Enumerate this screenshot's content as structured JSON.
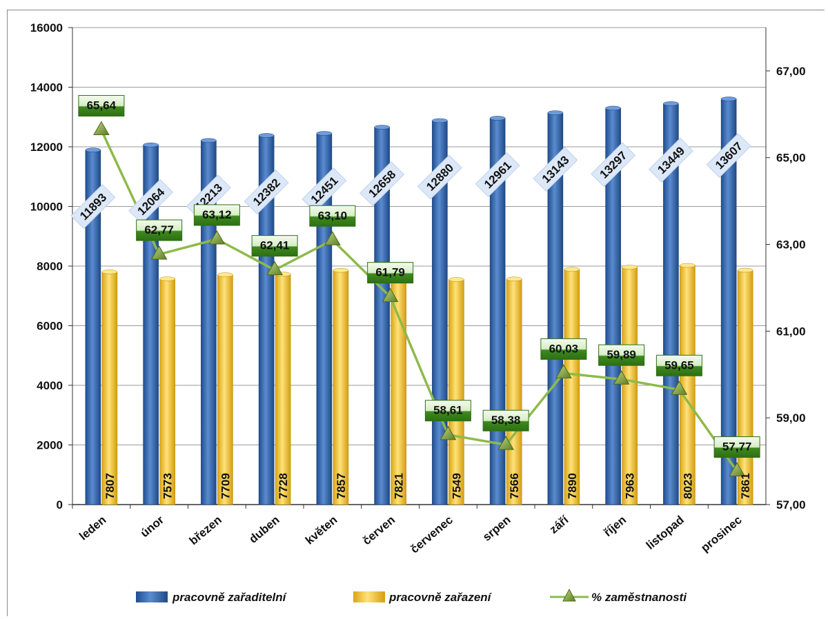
{
  "chart_data": {
    "type": "bar",
    "categories": [
      "leden",
      "únor",
      "březen",
      "duben",
      "květen",
      "červen",
      "červenec",
      "srpen",
      "září",
      "říjen",
      "listopad",
      "prosinec"
    ],
    "series": [
      {
        "name": "pracovně zařaditelní",
        "kind": "bar",
        "axis": "left",
        "color": "#3D6DB5",
        "values": [
          11893,
          12064,
          12213,
          12382,
          12451,
          12658,
          12880,
          12961,
          13143,
          13297,
          13449,
          13607
        ]
      },
      {
        "name": "pracovně zařazení",
        "kind": "bar",
        "axis": "left",
        "color": "#F2C531",
        "values": [
          7807,
          7573,
          7709,
          7728,
          7857,
          7821,
          7549,
          7566,
          7890,
          7963,
          8023,
          7861
        ]
      },
      {
        "name": "% zaměstnanosti",
        "kind": "line",
        "axis": "right",
        "color": "#8DBA4A",
        "values": [
          65.64,
          62.77,
          63.12,
          62.41,
          63.1,
          61.79,
          58.61,
          58.38,
          60.03,
          59.89,
          59.65,
          57.77
        ],
        "labels": [
          "65,64",
          "62,77",
          "63,12",
          "62,41",
          "63,10",
          "61,79",
          "58,61",
          "58,38",
          "60,03",
          "59,89",
          "59,65",
          "57,77"
        ]
      }
    ],
    "y_left": {
      "ylim": [
        0,
        16000
      ],
      "ticks": [
        0,
        2000,
        4000,
        6000,
        8000,
        10000,
        12000,
        14000,
        16000
      ],
      "tick_labels": [
        "0",
        "2000",
        "4000",
        "6000",
        "8000",
        "10000",
        "12000",
        "14000",
        "16000"
      ]
    },
    "y_right": {
      "ylim": [
        57,
        68
      ],
      "ticks": [
        57,
        59,
        61,
        63,
        65,
        67
      ],
      "tick_labels": [
        "57,00",
        "59,00",
        "61,00",
        "63,00",
        "65,00",
        "67,00"
      ]
    },
    "grid": true,
    "legend_position": "bottom"
  }
}
